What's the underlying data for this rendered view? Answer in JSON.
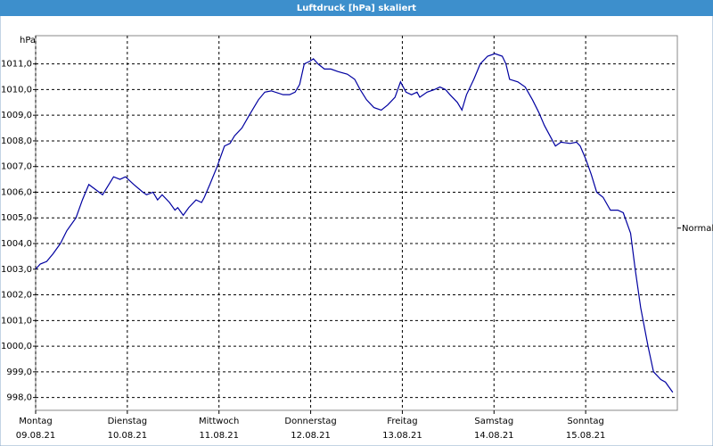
{
  "chart_data": {
    "type": "line",
    "title": "Luftdruck [hPa] skaliert",
    "y_label": "hPa",
    "x": [
      0,
      0.05,
      0.12,
      0.19,
      0.27,
      0.34,
      0.44,
      0.51,
      0.58,
      0.73,
      0.85,
      0.92,
      0.98,
      1.07,
      1.17,
      1.21,
      1.28,
      1.33,
      1.38,
      1.46,
      1.52,
      1.55,
      1.61,
      1.67,
      1.75,
      1.81,
      1.84,
      1.9,
      1.98,
      2.06,
      2.12,
      2.17,
      2.25,
      2.33,
      2.43,
      2.5,
      2.57,
      2.7,
      2.77,
      2.83,
      2.88,
      2.93,
      2.99,
      3.03,
      3.08,
      3.15,
      3.22,
      3.3,
      3.4,
      3.48,
      3.54,
      3.61,
      3.69,
      3.77,
      3.84,
      3.92,
      3.98,
      4.04,
      4.1,
      4.16,
      4.19,
      4.27,
      4.35,
      4.41,
      4.47,
      4.52,
      4.6,
      4.65,
      4.7,
      4.78,
      4.85,
      4.93,
      5.01,
      5.09,
      5.13,
      5.17,
      5.26,
      5.34,
      5.42,
      5.49,
      5.55,
      5.61,
      5.67,
      5.73,
      5.83,
      5.9,
      5.94,
      6.0,
      6.06,
      6.12,
      6.19,
      6.27,
      6.35,
      6.41,
      6.49,
      6.54,
      6.6,
      6.68,
      6.74,
      6.82,
      6.87,
      6.95
    ],
    "series": [
      {
        "name": "Luftdruck",
        "color": "#0000a0",
        "values": [
          1003.0,
          1003.2,
          1003.3,
          1003.6,
          1004.0,
          1004.5,
          1005.0,
          1005.7,
          1006.3,
          1005.9,
          1006.6,
          1006.5,
          1006.6,
          1006.3,
          1006.0,
          1005.9,
          1006.0,
          1005.7,
          1005.9,
          1005.6,
          1005.3,
          1005.4,
          1005.1,
          1005.4,
          1005.7,
          1005.6,
          1005.8,
          1006.3,
          1007.0,
          1007.8,
          1007.9,
          1008.2,
          1008.5,
          1009.0,
          1009.6,
          1009.9,
          1009.95,
          1009.8,
          1009.8,
          1009.9,
          1010.2,
          1011.0,
          1011.1,
          1011.2,
          1011.0,
          1010.8,
          1010.8,
          1010.7,
          1010.6,
          1010.4,
          1010.0,
          1009.6,
          1009.3,
          1009.2,
          1009.4,
          1009.7,
          1010.3,
          1009.9,
          1009.8,
          1009.9,
          1009.7,
          1009.9,
          1010.0,
          1010.1,
          1010.0,
          1009.8,
          1009.5,
          1009.2,
          1009.8,
          1010.4,
          1011.0,
          1011.3,
          1011.4,
          1011.3,
          1011.0,
          1010.4,
          1010.3,
          1010.1,
          1009.6,
          1009.1,
          1008.6,
          1008.2,
          1007.8,
          1007.95,
          1007.9,
          1007.95,
          1007.8,
          1007.3,
          1006.7,
          1006.0,
          1005.8,
          1005.3,
          1005.3,
          1005.2,
          1004.4,
          1003.0,
          1001.5,
          1000.0,
          999.0,
          998.7,
          998.6,
          998.2
        ]
      }
    ],
    "xlim": [
      0,
      7
    ],
    "ylim": [
      997.5,
      1012.1
    ],
    "xticks": [
      {
        "value": 0,
        "label": "Montag",
        "date": "09.08.21"
      },
      {
        "value": 1,
        "label": "Dienstag",
        "date": "10.08.21"
      },
      {
        "value": 2,
        "label": "Mittwoch",
        "date": "11.08.21"
      },
      {
        "value": 3,
        "label": "Donnerstag",
        "date": "12.08.21"
      },
      {
        "value": 4,
        "label": "Freitag",
        "date": "13.08.21"
      },
      {
        "value": 5,
        "label": "Samstag",
        "date": "14.08.21"
      },
      {
        "value": 6,
        "label": "Sonntag",
        "date": "15.08.21"
      }
    ],
    "yticks": [
      {
        "value": 998,
        "label": "998,0"
      },
      {
        "value": 999,
        "label": "999,0"
      },
      {
        "value": 1000,
        "label": "1000,0"
      },
      {
        "value": 1001,
        "label": "1001,0"
      },
      {
        "value": 1002,
        "label": "1002,0"
      },
      {
        "value": 1003,
        "label": "1003,0"
      },
      {
        "value": 1004,
        "label": "1004,0"
      },
      {
        "value": 1005,
        "label": "1005,0"
      },
      {
        "value": 1006,
        "label": "1006,0"
      },
      {
        "value": 1007,
        "label": "1007,0"
      },
      {
        "value": 1008,
        "label": "1008,0"
      },
      {
        "value": 1009,
        "label": "1009,0"
      },
      {
        "value": 1010,
        "label": "1010,0"
      },
      {
        "value": 1011,
        "label": "1011,0"
      }
    ],
    "normal": {
      "value": 1004.6,
      "label": "Normal"
    },
    "grid": true
  }
}
